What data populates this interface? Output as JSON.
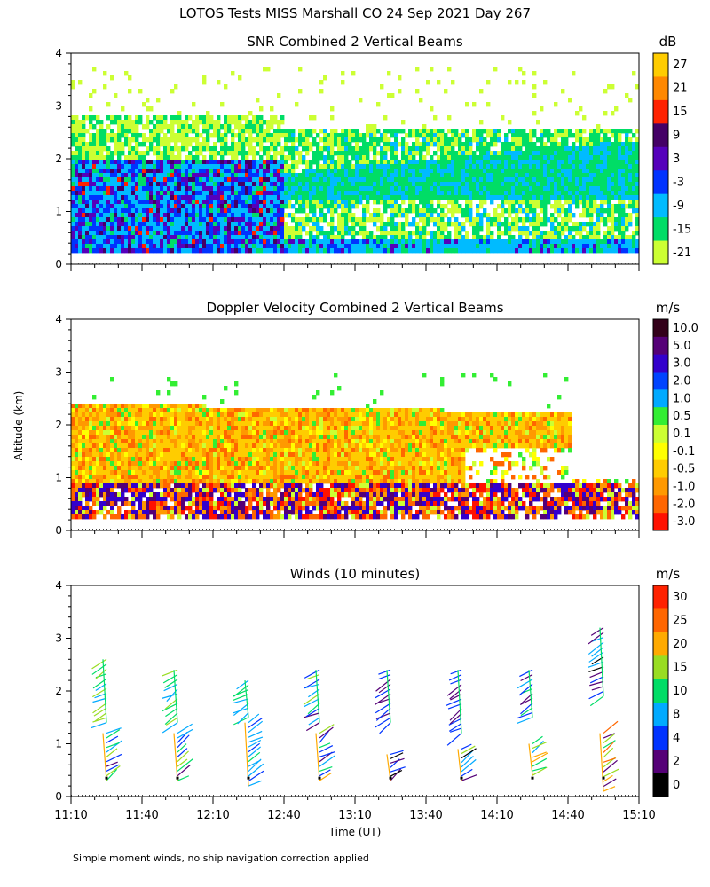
{
  "title": "LOTOS Tests MISS Marshall CO  24 Sep 2021 Day 267",
  "shared_y_label": "Altitude (km)",
  "x_label": "Time (UT)",
  "x_tick_labels": [
    "11:10",
    "11:40",
    "12:10",
    "12:40",
    "13:10",
    "13:40",
    "14:10",
    "14:40",
    "15:10"
  ],
  "footnote": "Simple moment winds, no ship navigation correction applied",
  "chart_data": [
    {
      "type": "heatmap",
      "title": "SNR Combined 2 Vertical Beams",
      "xlabel": "",
      "ylabel": "Altitude (km)",
      "xlim": [
        "11:10",
        "15:10"
      ],
      "ylim": [
        0,
        4
      ],
      "y_ticks": [
        0,
        1,
        2,
        3,
        4
      ],
      "colorbar": {
        "unit": "dB",
        "labels": [
          "27",
          "21",
          "15",
          "9",
          "3",
          "-3",
          "-9",
          "-15",
          "-21"
        ],
        "colors": [
          "#ffcc00",
          "#ff8800",
          "#ff2200",
          "#440066",
          "#5500bb",
          "#0033ff",
          "#00bbff",
          "#00dd66",
          "#ccff33"
        ]
      },
      "layers": [
        {
          "description": "strong returns",
          "altitude_km": [
            0.3,
            2.0
          ],
          "from": "11:10",
          "to": "12:40",
          "value_db": [
            -9,
            3
          ]
        },
        {
          "description": "layer",
          "altitude_km": [
            0.3,
            1.2
          ],
          "from": "12:40",
          "to": "15:10",
          "value_db": [
            -15,
            -3
          ]
        },
        {
          "description": "upper layer",
          "altitude_km": [
            1.4,
            2.6
          ],
          "from": "12:40",
          "to": "15:10",
          "value_db": [
            -21,
            -9
          ]
        }
      ]
    },
    {
      "type": "heatmap",
      "title": "Doppler Velocity Combined 2 Vertical Beams",
      "xlabel": "",
      "ylabel": "Altitude (km)",
      "xlim": [
        "11:10",
        "15:10"
      ],
      "ylim": [
        0,
        4
      ],
      "y_ticks": [
        0,
        1,
        2,
        3,
        4
      ],
      "colorbar": {
        "unit": "m/s",
        "labels": [
          "10.0",
          "5.0",
          "3.0",
          "2.0",
          "1.0",
          "0.5",
          "0.1",
          "-0.1",
          "-0.5",
          "-1.0",
          "-2.0",
          "-3.0"
        ],
        "colors": [
          "#33001a",
          "#550077",
          "#3300cc",
          "#0044ff",
          "#00aaff",
          "#33ee33",
          "#ccff33",
          "#ffff00",
          "#ffcc00",
          "#ff9900",
          "#ff6600",
          "#ff1100"
        ]
      },
      "layers": [
        {
          "description": "weak downward motion",
          "altitude_km": [
            0.9,
            2.4
          ],
          "from": "11:10",
          "to": "14:40",
          "value_ms": [
            -1.0,
            -0.1
          ]
        },
        {
          "description": "mixed noisy motion",
          "altitude_km": [
            0.3,
            0.9
          ],
          "from": "11:10",
          "to": "15:10",
          "value_ms": [
            -3.0,
            10.0
          ]
        }
      ]
    },
    {
      "type": "scatter",
      "subtype": "wind-barbs",
      "title": "Winds (10 minutes)",
      "xlabel": "Time (UT)",
      "ylabel": "Altitude (km)",
      "xlim": [
        "11:10",
        "15:10"
      ],
      "ylim": [
        0,
        4
      ],
      "y_ticks": [
        0,
        1,
        2,
        3,
        4
      ],
      "colorbar": {
        "unit": "m/s",
        "labels": [
          "30",
          "25",
          "20",
          "15",
          "10",
          "8",
          "4",
          "2",
          "0"
        ],
        "colors": [
          "#ff2200",
          "#ff6600",
          "#ffaa00",
          "#99dd22",
          "#00dd66",
          "#00aaff",
          "#0033ff",
          "#550077",
          "#000000"
        ]
      },
      "profiles": [
        {
          "time": "11:25",
          "lower_km": [
            0.3,
            1.2
          ],
          "upper_km": [
            1.4,
            2.6
          ],
          "lower_speed_ms": [
            4,
            20
          ],
          "upper_speed_ms": [
            12,
            22
          ]
        },
        {
          "time": "11:55",
          "lower_km": [
            0.3,
            1.2
          ],
          "upper_km": [
            1.4,
            2.4
          ],
          "lower_speed_ms": [
            4,
            20
          ],
          "upper_speed_ms": [
            12,
            20
          ]
        },
        {
          "time": "12:25",
          "lower_km": [
            0.2,
            1.4
          ],
          "upper_km": [
            1.5,
            2.2
          ],
          "lower_speed_ms": [
            8,
            15
          ],
          "upper_speed_ms": [
            10,
            18
          ]
        },
        {
          "time": "12:55",
          "lower_km": [
            0.3,
            1.2
          ],
          "upper_km": [
            1.4,
            2.4
          ],
          "lower_speed_ms": [
            2,
            25
          ],
          "upper_speed_ms": [
            4,
            20
          ]
        },
        {
          "time": "13:25",
          "lower_km": [
            0.3,
            0.8
          ],
          "upper_km": [
            1.4,
            2.4
          ],
          "lower_speed_ms": [
            0,
            20
          ],
          "upper_speed_ms": [
            4,
            8
          ]
        },
        {
          "time": "13:55",
          "lower_km": [
            0.3,
            0.9
          ],
          "upper_km": [
            1.2,
            2.4
          ],
          "lower_speed_ms": [
            0,
            20
          ],
          "upper_speed_ms": [
            4,
            10
          ]
        },
        {
          "time": "14:25",
          "lower_km": [
            0.4,
            1.0
          ],
          "upper_km": [
            1.5,
            2.4
          ],
          "lower_speed_ms": [
            10,
            25
          ],
          "upper_speed_ms": [
            2,
            15
          ]
        },
        {
          "time": "14:55",
          "lower_km": [
            0.1,
            1.2
          ],
          "upper_km": [
            1.9,
            3.2
          ],
          "lower_speed_ms": [
            0,
            30
          ],
          "upper_speed_ms": [
            0,
            15
          ]
        }
      ]
    }
  ]
}
